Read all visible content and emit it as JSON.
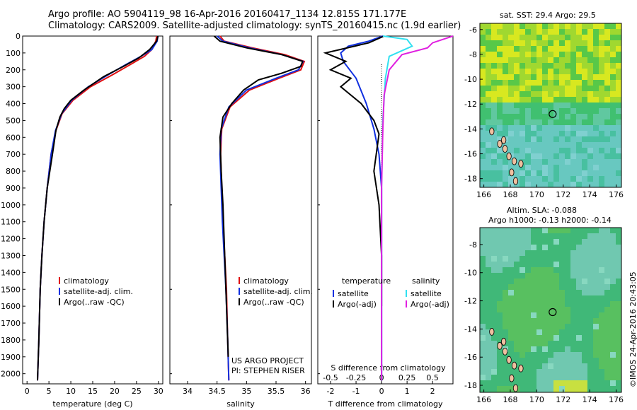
{
  "header": {
    "line1": "Argo profile: AO 5904119_98 16-Apr-2016 20160417_1134 12.815S 171.177E",
    "line2": "Climatology: CARS2009. Satellite-adjusted climatology: synTS_20160415.nc (1.9d earlier)"
  },
  "project": {
    "line1": "US ARGO PROJECT",
    "line2": "PI: STEPHEN RISER"
  },
  "side_stamp": "©IMOS 24-Apr-2016 20:43:05",
  "colors": {
    "climatology": "#e01010",
    "satellite": "#1030e0",
    "argo": "#000000",
    "sat_salinity": "#30e0f0",
    "argo_salinity": "#e020e0"
  },
  "chart_data": [
    {
      "type": "line",
      "xlabel": "temperature (deg C)",
      "ylabel": "",
      "xlim": [
        -1,
        31
      ],
      "ylim": [
        2060,
        0
      ],
      "xticks": [
        "0",
        "5",
        "10",
        "15",
        "20",
        "25",
        "30"
      ],
      "yticks": [
        "0",
        "100",
        "200",
        "300",
        "400",
        "500",
        "600",
        "700",
        "800",
        "900",
        "1000",
        "1100",
        "1200",
        "1300",
        "1400",
        "1500",
        "1600",
        "1700",
        "1800",
        "1900",
        "2000"
      ],
      "legend": [
        "climatology",
        "satellite-adj. clim.",
        "Argo(..raw -QC)"
      ],
      "series": [
        {
          "name": "climatology",
          "x": [
            29.6,
            29.4,
            28.5,
            26.8,
            23.5,
            19.5,
            14.5,
            10.5,
            8.0,
            6.6,
            5.5,
            4.6,
            3.9,
            3.4,
            3.0,
            2.7,
            2.4
          ],
          "y": [
            0,
            30,
            80,
            120,
            170,
            230,
            300,
            380,
            460,
            560,
            700,
            900,
            1100,
            1300,
            1500,
            1800,
            2040
          ]
        },
        {
          "name": "satellite-adj. clim.",
          "x": [
            29.9,
            29.7,
            28.5,
            26.0,
            22.5,
            18.5,
            14.0,
            10.2,
            7.9,
            6.5,
            5.5,
            4.6,
            3.9,
            3.4,
            3.0,
            2.7,
            2.4
          ],
          "y": [
            0,
            30,
            80,
            120,
            170,
            230,
            300,
            380,
            460,
            560,
            700,
            900,
            1100,
            1300,
            1500,
            1800,
            2040
          ]
        },
        {
          "name": "Argo(..raw -QC)",
          "x": [
            29.9,
            29.6,
            28.0,
            25.5,
            22.0,
            17.5,
            13.0,
            10.0,
            8.5,
            7.5,
            6.6,
            5.8,
            4.6,
            3.9,
            3.4,
            3.0,
            2.7,
            2.4
          ],
          "y": [
            0,
            30,
            80,
            130,
            180,
            240,
            320,
            380,
            430,
            480,
            560,
            700,
            900,
            1100,
            1300,
            1500,
            1800,
            2040
          ]
        }
      ]
    },
    {
      "type": "line",
      "xlabel": "salinity",
      "xlim": [
        33.7,
        36.1
      ],
      "ylim": [
        2060,
        0
      ],
      "xticks": [
        "34",
        "34.5",
        "35",
        "35.5",
        "36"
      ],
      "legend": [
        "climatology",
        "satellite-adj. clim.",
        "Argo(..raw -QC)"
      ],
      "series": [
        {
          "name": "climatology",
          "x": [
            34.55,
            34.62,
            35.1,
            35.65,
            35.98,
            35.92,
            35.55,
            35.05,
            34.72,
            34.58,
            34.56,
            34.58,
            34.6,
            34.63,
            34.66,
            34.68,
            34.7
          ],
          "y": [
            0,
            30,
            70,
            110,
            150,
            200,
            250,
            320,
            420,
            550,
            700,
            900,
            1100,
            1300,
            1500,
            1800,
            2040
          ]
        },
        {
          "name": "satellite-adj. clim.",
          "x": [
            34.5,
            34.6,
            35.05,
            35.6,
            35.96,
            35.88,
            35.5,
            35.0,
            34.7,
            34.57,
            34.55,
            34.57,
            34.59,
            34.62,
            34.65,
            34.68,
            34.7
          ],
          "y": [
            0,
            30,
            70,
            110,
            150,
            200,
            250,
            320,
            420,
            550,
            700,
            900,
            1100,
            1300,
            1500,
            1800,
            2040
          ]
        },
        {
          "name": "Argo(..raw -QC)",
          "x": [
            34.45,
            34.55,
            35.0,
            35.6,
            35.95,
            35.92,
            35.6,
            35.2,
            34.95,
            34.75,
            34.6,
            34.55,
            34.57,
            34.6,
            34.63,
            34.66,
            34.69
          ],
          "y": [
            0,
            30,
            70,
            110,
            150,
            180,
            220,
            260,
            320,
            400,
            480,
            600,
            800,
            1000,
            1300,
            1600,
            1900
          ]
        }
      ]
    },
    {
      "type": "line",
      "xlabel": "T difference from climatology",
      "xlabel_top": "S difference from climatology",
      "xlim": [
        -2.5,
        2.8
      ],
      "ylim": [
        2060,
        0
      ],
      "xticks": [
        "-2",
        "-1",
        "0",
        "1",
        "2"
      ],
      "xticks_top": [
        "-0.5",
        "-0.25",
        "0",
        "0.25",
        "0.5"
      ],
      "legend_titles": [
        "temperature",
        "salinity"
      ],
      "legend": [
        "satellite",
        "Argo(-adj)",
        "satellite",
        "Argo(-adj)"
      ],
      "series": [
        {
          "name": "satellite",
          "x": [
            0.05,
            -0.5,
            -1.3,
            -1.6,
            -1.5,
            -1.0,
            -0.6,
            -0.3,
            -0.1,
            0.0,
            0.0,
            0.0,
            0.0
          ],
          "y": [
            0,
            30,
            60,
            100,
            150,
            250,
            400,
            550,
            700,
            900,
            1200,
            1600,
            2040
          ]
        },
        {
          "name": "Argo(-adj)",
          "x": [
            0.1,
            -0.5,
            -2.2,
            -1.4,
            -2.0,
            -1.2,
            -1.6,
            -0.8,
            -0.3,
            -0.1,
            -0.3,
            -0.1,
            0.0,
            0.0
          ],
          "y": [
            0,
            40,
            100,
            150,
            200,
            250,
            300,
            400,
            500,
            580,
            800,
            1000,
            1300,
            1600
          ]
        },
        {
          "name": "satellite",
          "x": [
            0.05,
            1.0,
            1.2,
            0.3,
            0.15,
            0.05,
            0.0,
            0.0,
            0.0
          ],
          "y": [
            0,
            20,
            60,
            120,
            250,
            500,
            900,
            1400,
            2040
          ]
        },
        {
          "name": "Argo(-adj)",
          "x": [
            2.8,
            2.0,
            1.8,
            0.8,
            0.3,
            0.1,
            0.05,
            0.0,
            0.0,
            0.0
          ],
          "y": [
            0,
            40,
            70,
            110,
            200,
            350,
            550,
            900,
            1400,
            2040
          ]
        }
      ]
    }
  ],
  "maps": [
    {
      "title": "sat. SST: 29.4 Argo: 29.5",
      "title2": "",
      "xticks": [
        "166",
        "168",
        "170",
        "172",
        "174",
        "176"
      ],
      "yticks": [
        "-6",
        "-8",
        "-10",
        "-12",
        "-14",
        "-16",
        "-18"
      ],
      "marker": {
        "lon": 171.2,
        "lat": -12.8
      }
    },
    {
      "title": "Altim. SLA: -0.088",
      "title2": "Argo h1000: -0.13 h2000: -0.14",
      "xticks": [
        "166",
        "168",
        "170",
        "172",
        "174",
        "176"
      ],
      "yticks": [
        "-8",
        "-10",
        "-12",
        "-14",
        "-16",
        "-18"
      ],
      "marker": {
        "lon": 171.2,
        "lat": -12.8
      }
    }
  ]
}
